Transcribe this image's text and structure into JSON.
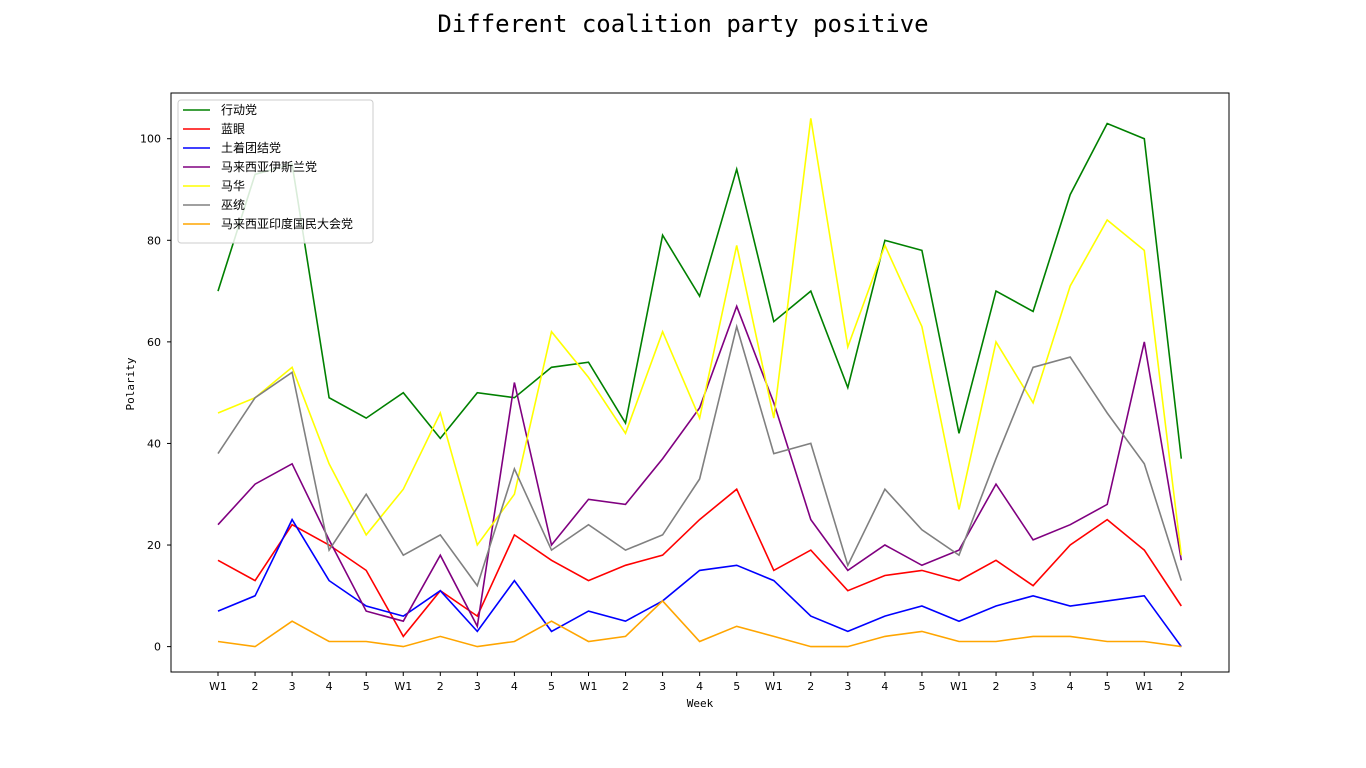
{
  "chart_data": {
    "type": "line",
    "title": "Different coalition party positive",
    "xlabel": "Week",
    "ylabel": "Polarity",
    "categories": [
      "W1",
      "2",
      "3",
      "4",
      "5",
      "W1",
      "2",
      "3",
      "4",
      "5",
      "W1",
      "2",
      "3",
      "4",
      "5",
      "W1",
      "2",
      "3",
      "4",
      "5",
      "W1",
      "2",
      "3",
      "4",
      "5",
      "W1",
      "2"
    ],
    "ylim": [
      -5,
      109
    ],
    "yticks": [
      0,
      20,
      40,
      60,
      80,
      100
    ],
    "grid": false,
    "legend_position": "top-left",
    "series": [
      {
        "name": "行动党",
        "color": "#008000",
        "values": [
          70,
          93,
          95,
          49,
          45,
          50,
          41,
          50,
          49,
          55,
          56,
          44,
          81,
          69,
          94,
          64,
          70,
          51,
          80,
          78,
          42,
          70,
          66,
          89,
          103,
          100,
          37
        ]
      },
      {
        "name": "蓝眼",
        "color": "#ff0000",
        "values": [
          17,
          13,
          24,
          20,
          15,
          2,
          11,
          6,
          22,
          17,
          13,
          16,
          18,
          25,
          31,
          15,
          19,
          11,
          14,
          15,
          13,
          17,
          12,
          20,
          25,
          19,
          8
        ]
      },
      {
        "name": "土着团结党",
        "color": "#0000ff",
        "values": [
          7,
          10,
          25,
          13,
          8,
          6,
          11,
          3,
          13,
          3,
          7,
          5,
          9,
          15,
          16,
          13,
          6,
          3,
          6,
          8,
          5,
          8,
          10,
          8,
          9,
          10,
          0
        ]
      },
      {
        "name": "马来西亚伊斯兰党",
        "color": "#800080",
        "values": [
          24,
          32,
          36,
          21,
          7,
          5,
          18,
          4,
          52,
          20,
          29,
          28,
          37,
          47,
          67,
          48,
          25,
          15,
          20,
          16,
          19,
          32,
          21,
          24,
          28,
          60,
          17
        ]
      },
      {
        "name": "马华",
        "color": "#ffff00",
        "values": [
          46,
          49,
          55,
          36,
          22,
          31,
          46,
          20,
          30,
          62,
          53,
          42,
          62,
          45,
          79,
          45,
          104,
          59,
          79,
          63,
          27,
          60,
          48,
          71,
          84,
          78,
          18
        ]
      },
      {
        "name": "巫统",
        "color": "#808080",
        "values": [
          38,
          49,
          54,
          19,
          30,
          18,
          22,
          12,
          35,
          19,
          24,
          19,
          22,
          33,
          63,
          38,
          40,
          16,
          31,
          23,
          18,
          37,
          55,
          57,
          46,
          36,
          13
        ]
      },
      {
        "name": "马来西亚印度国民大会党",
        "color": "#ffa500",
        "values": [
          1,
          0,
          5,
          1,
          1,
          0,
          2,
          0,
          1,
          5,
          1,
          2,
          9,
          1,
          4,
          2,
          0,
          0,
          2,
          3,
          1,
          1,
          2,
          2,
          1,
          1,
          0
        ]
      }
    ]
  }
}
